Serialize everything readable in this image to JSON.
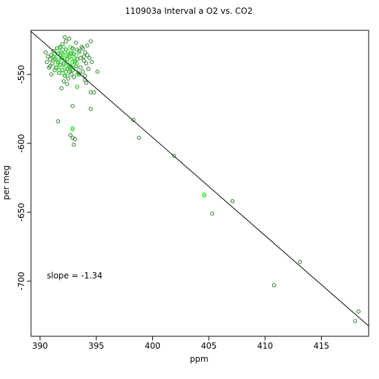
{
  "chart_data": {
    "type": "scatter",
    "title": "110903a   Interval a O2 vs. CO2",
    "xlabel": "ppm",
    "ylabel": "per meg",
    "xlim": [
      389.2,
      419.2
    ],
    "ylim": [
      -740,
      -518
    ],
    "xticks": [
      390,
      395,
      400,
      405,
      410,
      415
    ],
    "yticks": [
      -550,
      -600,
      -650,
      -700
    ],
    "xtick_labels": [
      "390",
      "395",
      "400",
      "405",
      "410",
      "415"
    ],
    "ytick_labels": [
      "-550",
      "-600",
      "-650",
      "-700"
    ],
    "grid": false,
    "legend": "none",
    "annotation": {
      "text": "slope =  -1.34"
    },
    "fit_line": {
      "slope": -1.34,
      "points": [
        [
          389.2,
          -518.8
        ],
        [
          419.2,
          -732.5
        ]
      ]
    },
    "colors": {
      "dark_series": "#1e7a1e",
      "light_series": "#22dd22",
      "line": "#000000"
    },
    "series": [
      {
        "color_role": "dark",
        "points": [
          [
            390.5,
            -534
          ],
          [
            390.7,
            -537
          ],
          [
            390.6,
            -541
          ],
          [
            390.9,
            -544
          ],
          [
            391.0,
            -536
          ],
          [
            391.2,
            -533
          ],
          [
            391.3,
            -539
          ],
          [
            391.1,
            -542
          ],
          [
            391.5,
            -531
          ],
          [
            391.6,
            -535
          ],
          [
            391.4,
            -545
          ],
          [
            391.8,
            -530
          ],
          [
            391.9,
            -538
          ],
          [
            392.0,
            -528
          ],
          [
            392.1,
            -542
          ],
          [
            392.3,
            -526
          ],
          [
            392.4,
            -546
          ],
          [
            392.6,
            -524
          ],
          [
            392.7,
            -544
          ],
          [
            392.9,
            -531
          ],
          [
            393.0,
            -535
          ],
          [
            393.1,
            -541
          ],
          [
            393.2,
            -527
          ],
          [
            393.3,
            -539
          ],
          [
            393.5,
            -533
          ],
          [
            393.6,
            -545
          ],
          [
            393.7,
            -530
          ],
          [
            393.9,
            -537
          ],
          [
            394.0,
            -534
          ],
          [
            394.1,
            -542
          ],
          [
            394.2,
            -529
          ],
          [
            394.4,
            -538
          ],
          [
            394.5,
            -526
          ],
          [
            394.3,
            -546
          ],
          [
            393.8,
            -548
          ],
          [
            393.4,
            -549
          ],
          [
            392.8,
            -550
          ],
          [
            392.2,
            -551
          ],
          [
            391.7,
            -549
          ],
          [
            391.3,
            -547
          ],
          [
            390.8,
            -545
          ],
          [
            391.0,
            -550
          ],
          [
            392.5,
            -553
          ],
          [
            393.0,
            -552
          ],
          [
            393.5,
            -550
          ],
          [
            394.0,
            -551
          ],
          [
            392.0,
            -547
          ],
          [
            391.9,
            -534
          ],
          [
            392.4,
            -539
          ],
          [
            393.2,
            -544
          ],
          [
            393.9,
            -540
          ],
          [
            392.7,
            -535
          ],
          [
            391.6,
            -541
          ],
          [
            392.9,
            -547
          ],
          [
            393.6,
            -538
          ],
          [
            394.2,
            -536
          ],
          [
            391.2,
            -537
          ],
          [
            392.3,
            -532
          ],
          [
            393.3,
            -532
          ],
          [
            394.6,
            -541
          ],
          [
            391.8,
            -543
          ],
          [
            392.6,
            -548
          ],
          [
            390.9,
            -539
          ],
          [
            393.8,
            -531
          ],
          [
            392.1,
            -555
          ],
          [
            392.4,
            -557
          ],
          [
            391.9,
            -560
          ],
          [
            393.3,
            -559
          ],
          [
            394.1,
            -556
          ],
          [
            395.1,
            -548
          ],
          [
            394.5,
            -563
          ],
          [
            394.8,
            -563
          ],
          [
            392.9,
            -573
          ],
          [
            394.5,
            -575
          ],
          [
            391.6,
            -584
          ],
          [
            392.9,
            -596
          ],
          [
            393.1,
            -597
          ],
          [
            393.0,
            -601
          ],
          [
            392.7,
            -594
          ],
          [
            398.3,
            -583
          ],
          [
            398.8,
            -596
          ],
          [
            401.9,
            -609
          ],
          [
            405.3,
            -651
          ],
          [
            407.1,
            -642
          ],
          [
            410.8,
            -703
          ],
          [
            413.1,
            -686
          ],
          [
            418.0,
            -729
          ],
          [
            418.3,
            -722
          ],
          [
            394.0,
            -554
          ],
          [
            392.2,
            -523
          ]
        ]
      },
      {
        "color_role": "light",
        "points": [
          [
            391.5,
            -533
          ],
          [
            391.8,
            -536
          ],
          [
            392.0,
            -538
          ],
          [
            392.2,
            -534
          ],
          [
            392.4,
            -541
          ],
          [
            392.6,
            -536
          ],
          [
            392.8,
            -539
          ],
          [
            393.0,
            -543
          ],
          [
            391.7,
            -540
          ],
          [
            392.3,
            -544
          ],
          [
            392.9,
            -532
          ],
          [
            391.4,
            -538
          ],
          [
            392.1,
            -530
          ],
          [
            392.7,
            -530
          ],
          [
            393.2,
            -536
          ],
          [
            391.9,
            -545
          ],
          [
            392.5,
            -546
          ],
          [
            393.1,
            -540
          ],
          [
            391.6,
            -542
          ],
          [
            392.0,
            -535
          ],
          [
            392.4,
            -537
          ],
          [
            392.8,
            -535
          ],
          [
            391.3,
            -535
          ],
          [
            392.2,
            -540
          ],
          [
            392.6,
            -543
          ],
          [
            393.0,
            -538
          ],
          [
            391.8,
            -531
          ],
          [
            392.5,
            -533
          ],
          [
            393.3,
            -542
          ],
          [
            391.5,
            -545
          ],
          [
            392.3,
            -548
          ],
          [
            392.7,
            -547
          ],
          [
            393.2,
            -546
          ],
          [
            392.1,
            -543
          ],
          [
            392.9,
            -541
          ],
          [
            391.7,
            -547
          ],
          [
            392.4,
            -551
          ],
          [
            393.5,
            -534
          ],
          [
            391.2,
            -540
          ],
          [
            392.0,
            -549
          ],
          [
            393.3,
            -550
          ],
          [
            393.3,
            -559
          ],
          [
            392.9,
            -590
          ],
          [
            392.9,
            -589
          ],
          [
            404.6,
            -638
          ],
          [
            404.6,
            -637
          ],
          [
            392.6,
            -537
          ],
          [
            391.9,
            -538
          ],
          [
            392.3,
            -536
          ],
          [
            392.8,
            -545
          ]
        ]
      }
    ]
  }
}
